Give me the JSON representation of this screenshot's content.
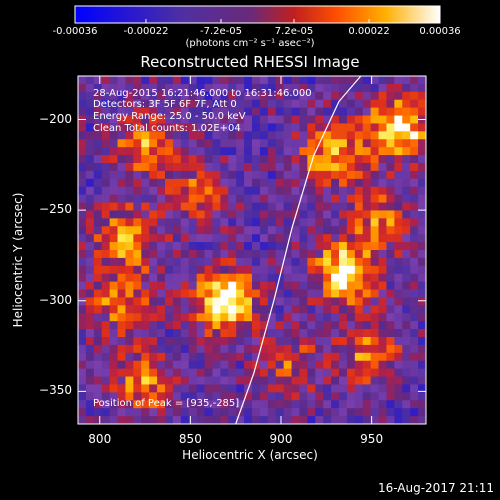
{
  "colorbar": {
    "ticks": [
      "-0.00036",
      "-0.00022",
      "-7.2e-05",
      "7.2e-05",
      "0.00022",
      "0.00036"
    ],
    "tick_values": [
      -0.00036,
      -0.00022,
      -7.2e-05,
      7.2e-05,
      0.00022,
      0.00036
    ],
    "range": [
      -0.00036,
      0.00036
    ],
    "units": "(photons cm⁻² s⁻¹ asec⁻²)"
  },
  "title": "Reconstructed RHESSI Image",
  "annotations": {
    "time": "28-Aug-2015 16:21:46.000 to 16:31:46.000",
    "detectors": "Detectors: 3F 5F 6F 7F, Att 0",
    "energy": "Energy Range: 25.0 - 50.0 keV",
    "clean": "Clean     Total counts: 1.02E+04",
    "peak": "Position of Peak = [935,-285]"
  },
  "footer": "16-Aug-2017 21:11",
  "chart_data": {
    "type": "heatmap",
    "title": "Reconstructed RHESSI Image",
    "xlabel": "Heliocentric X (arcsec)",
    "ylabel": "Heliocentric Y (arcsec)",
    "xlim": [
      788,
      980
    ],
    "ylim": [
      -368,
      -176
    ],
    "xticks": [
      800,
      850,
      900,
      950
    ],
    "yticks": [
      -200,
      -250,
      -300,
      -350
    ],
    "grid": false,
    "colormap": [
      "#0000ff",
      "#2a1ad0",
      "#4d2ea0",
      "#7a3fae",
      "#5a2a8a",
      "#b0204a",
      "#e0301a",
      "#ff6a00",
      "#ffb000",
      "#ffe840",
      "#ffffff"
    ],
    "source_peaks": [
      {
        "x": 870,
        "y": -300,
        "amp": 1.0
      },
      {
        "x": 935,
        "y": -285,
        "amp": 0.9
      },
      {
        "x": 965,
        "y": -205,
        "amp": 0.9
      },
      {
        "x": 928,
        "y": -222,
        "amp": 0.7
      },
      {
        "x": 815,
        "y": -265,
        "amp": 0.65
      },
      {
        "x": 825,
        "y": -213,
        "amp": 0.6
      },
      {
        "x": 812,
        "y": -300,
        "amp": 0.55
      },
      {
        "x": 948,
        "y": -330,
        "amp": 0.55
      },
      {
        "x": 955,
        "y": -255,
        "amp": 0.5
      },
      {
        "x": 825,
        "y": -345,
        "amp": 0.55
      },
      {
        "x": 855,
        "y": -240,
        "amp": 0.45
      },
      {
        "x": 905,
        "y": -335,
        "amp": 0.4
      }
    ],
    "limb_curve": {
      "x": [
        875,
        885,
        896,
        906,
        918,
        932,
        944
      ],
      "y": [
        -368,
        -340,
        -300,
        -260,
        -220,
        -190,
        -176
      ]
    }
  }
}
